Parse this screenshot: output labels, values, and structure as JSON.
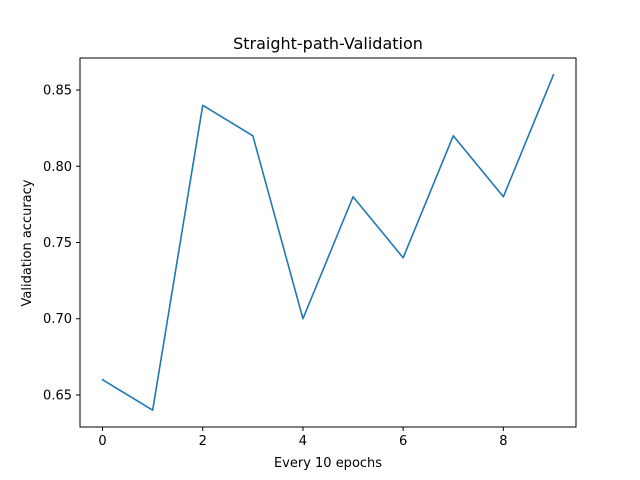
{
  "chart_data": {
    "type": "line",
    "title": "Straight-path-Validation",
    "xlabel": "Every 10 epochs",
    "ylabel": "Validation accuracy",
    "x": [
      0,
      1,
      2,
      3,
      4,
      5,
      6,
      7,
      8,
      9
    ],
    "series": [
      {
        "values": [
          0.66,
          0.64,
          0.84,
          0.82,
          0.7,
          0.78,
          0.74,
          0.82,
          0.78,
          0.86
        ],
        "color": "#1f77b4"
      }
    ],
    "xlim": [
      -0.45,
      9.45
    ],
    "ylim": [
      0.629,
      0.871
    ],
    "xticks": [
      0,
      2,
      4,
      6,
      8
    ],
    "xtick_labels": [
      "0",
      "2",
      "4",
      "6",
      "8"
    ],
    "yticks": [
      0.65,
      0.7,
      0.75,
      0.8,
      0.85
    ],
    "ytick_labels": [
      "0.65",
      "0.70",
      "0.75",
      "0.80",
      "0.85"
    ],
    "grid": false,
    "legend": "none"
  }
}
